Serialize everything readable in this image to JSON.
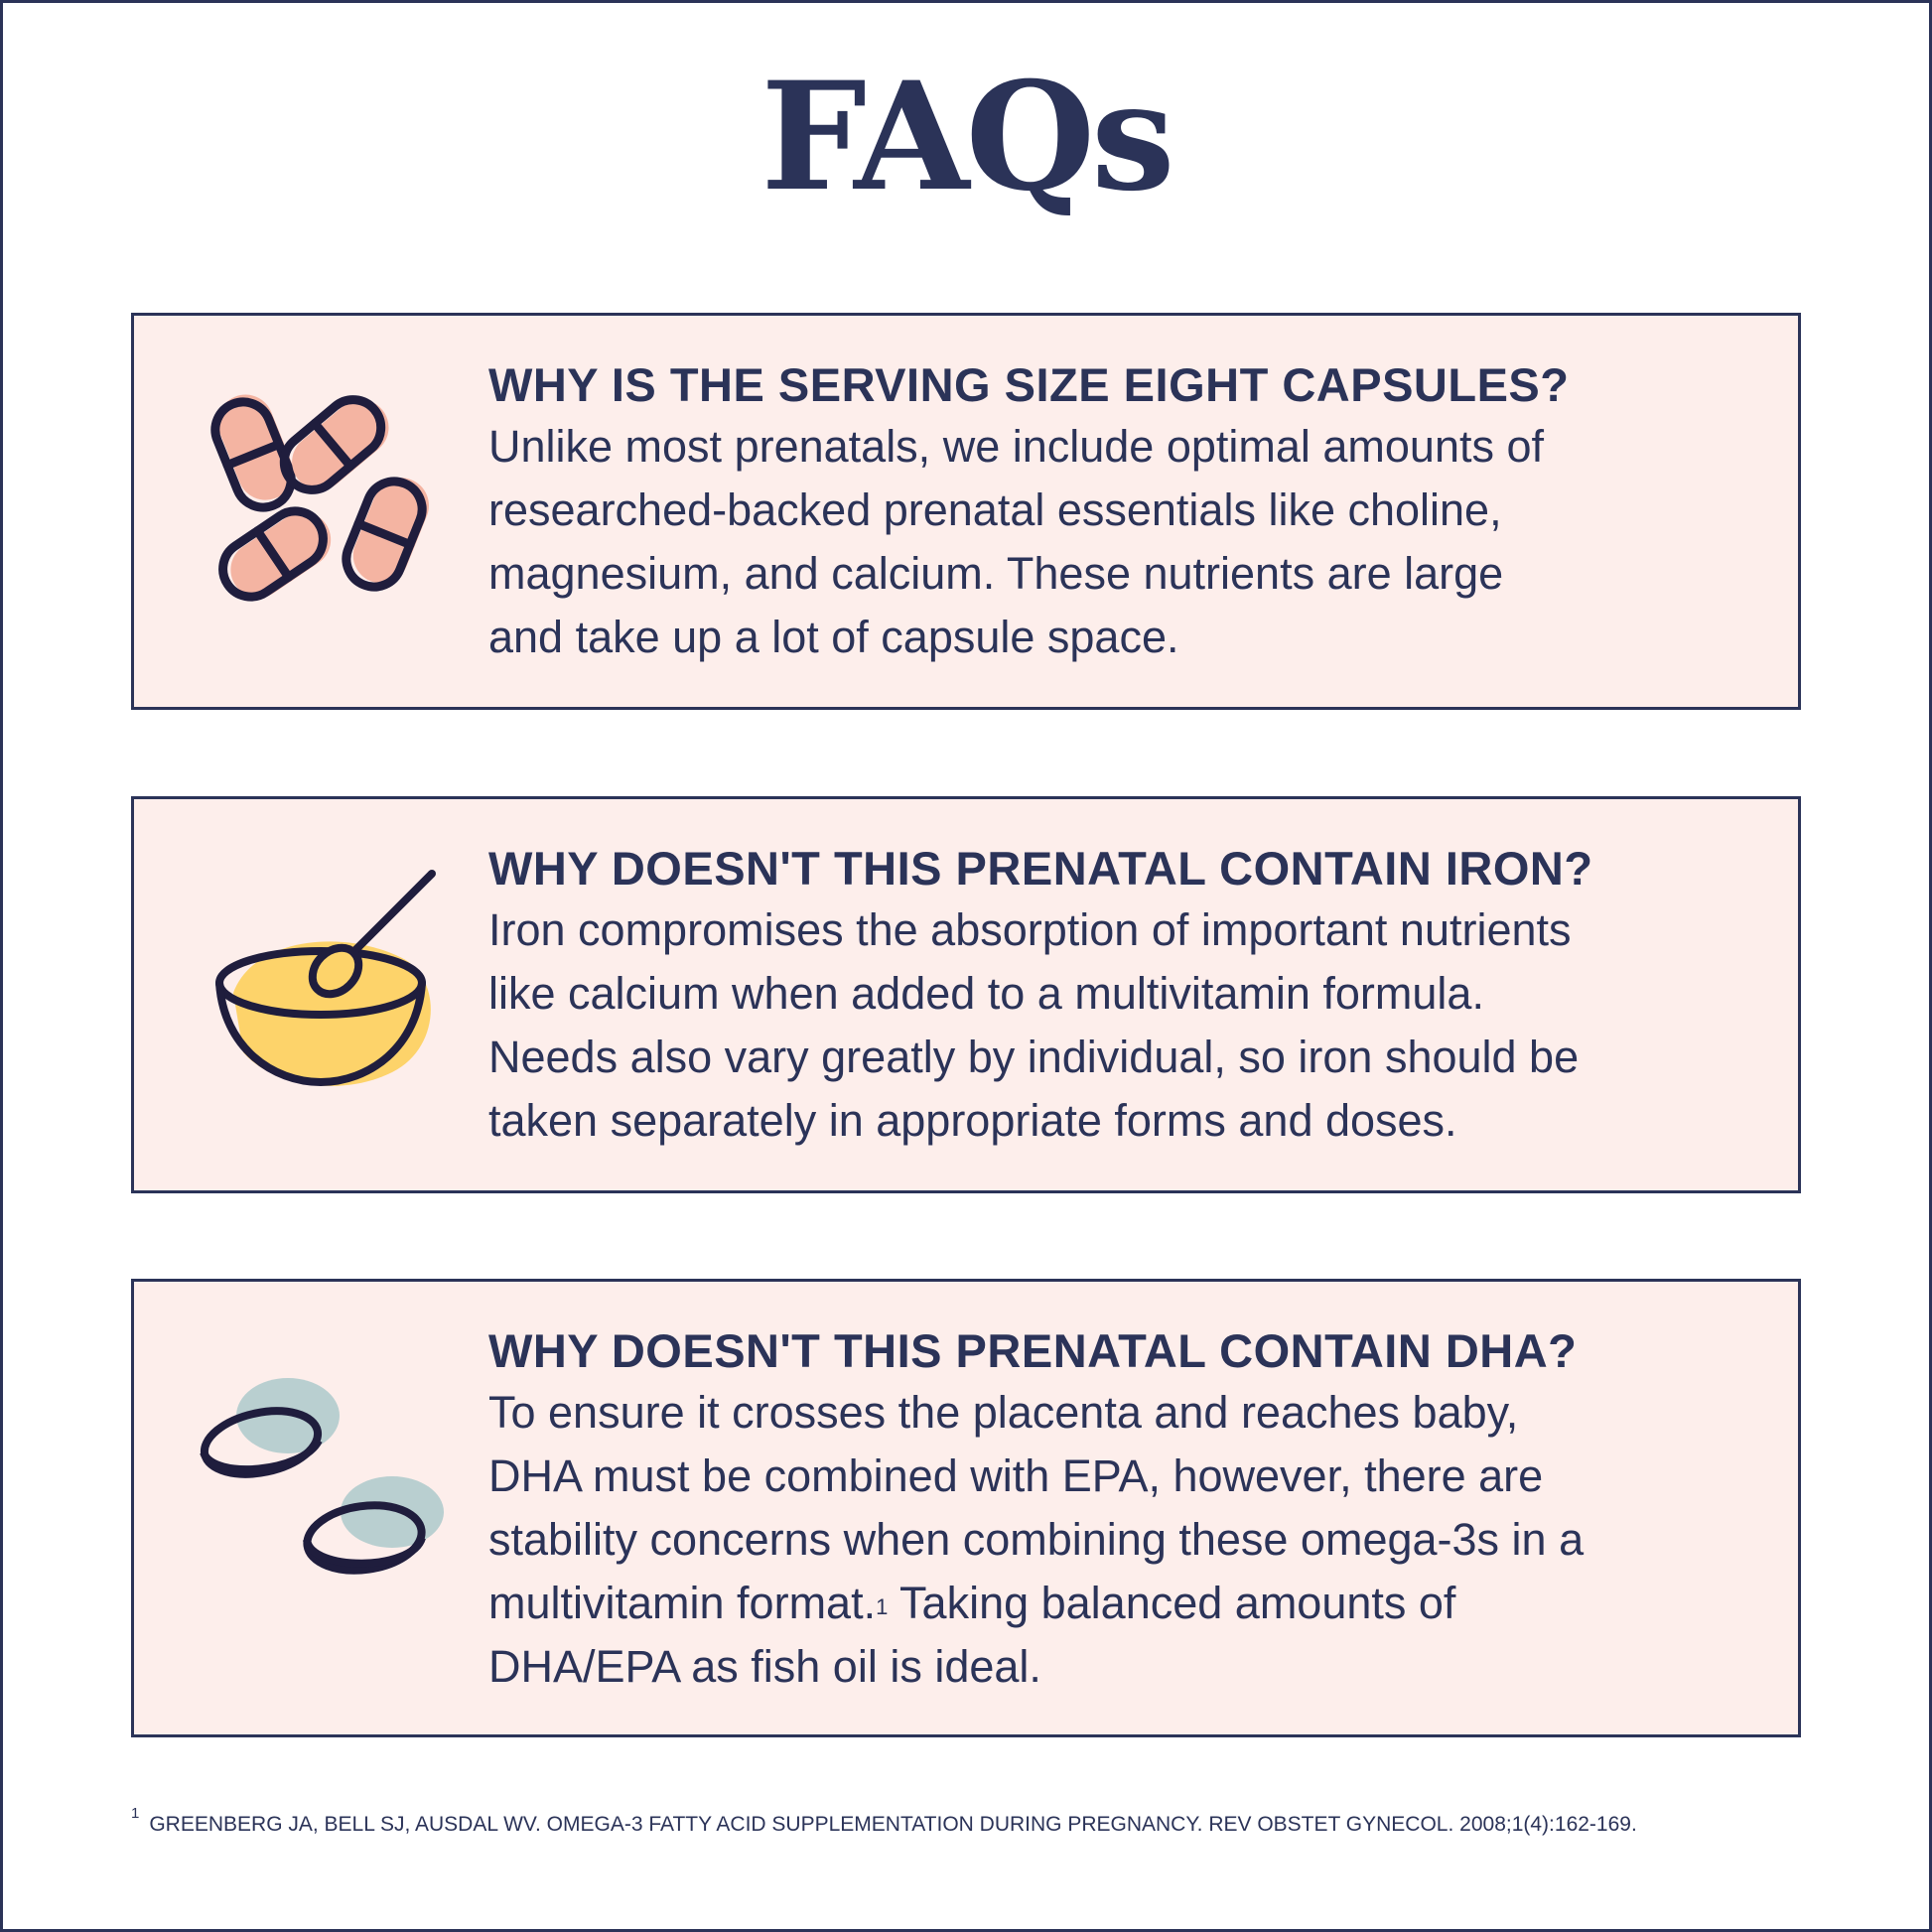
{
  "title": "FAQs",
  "colors": {
    "navy": "#2b3358",
    "card_bg": "#fdeeeb",
    "pill": "#f4b4a2",
    "yellow": "#fdd36a",
    "softgel": "#b9cfd0"
  },
  "faqs": [
    {
      "icon": "capsules-icon",
      "question": "WHY IS THE SERVING SIZE EIGHT CAPSULES?",
      "lines": [
        "Unlike most prenatals, we include optimal amounts of",
        "researched-backed prenatal essentials like choline,",
        "magnesium, and calcium. These nutrients are large",
        "and take up a lot of capsule space."
      ]
    },
    {
      "icon": "bowl-spoon-icon",
      "question": "WHY DOESN'T THIS PRENATAL CONTAIN IRON?",
      "lines": [
        "Iron compromises the absorption of important nutrients",
        "like calcium when added to a multivitamin formula.",
        "Needs also vary greatly by individual, so iron should be",
        "taken separately in appropriate forms and doses."
      ]
    },
    {
      "icon": "softgels-icon",
      "question": "WHY DOESN'T THIS PRENATAL CONTAIN DHA?",
      "lines": [
        "To ensure it crosses the placenta and reaches baby,",
        "DHA must be combined with EPA, however, there are",
        "stability concerns when combining these omega-3s in a",
        "multivitamin format.",
        "Taking balanced amounts of",
        "DHA/EPA as fish oil is ideal."
      ],
      "footnote_mark": "1"
    }
  ],
  "footnote": {
    "mark": "1",
    "text": "GREENBERG JA, BELL SJ, AUSDAL WV. OMEGA-3 FATTY ACID SUPPLEMENTATION DURING PREGNANCY. REV OBSTET GYNECOL. 2008;1(4):162-169."
  }
}
